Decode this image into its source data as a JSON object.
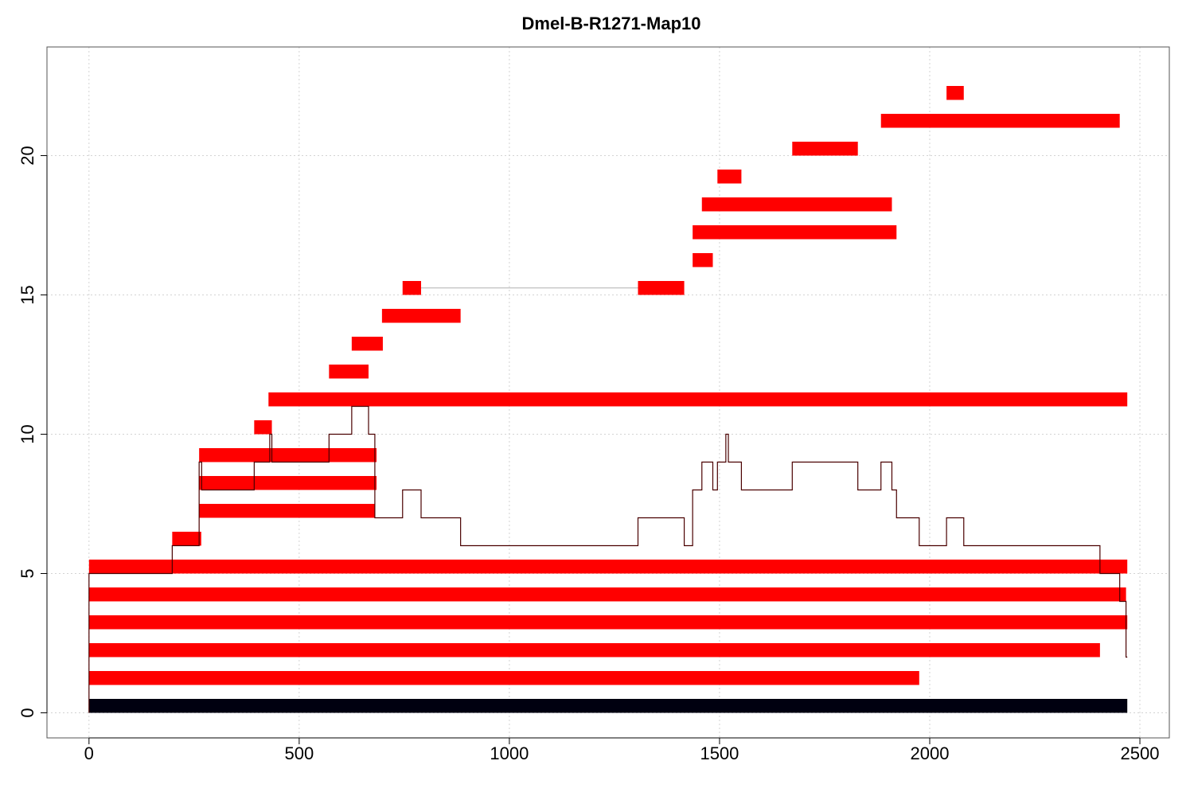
{
  "chart_data": {
    "type": "bar",
    "title": "Dmel-B-R1271-Map10",
    "xlabel": "",
    "ylabel": "",
    "xlim": [
      -100,
      2570
    ],
    "ylim": [
      -0.9,
      23.9
    ],
    "grid": true,
    "x_ticks": [
      0,
      500,
      1000,
      1500,
      2000,
      2500
    ],
    "y_ticks": [
      0,
      5,
      10,
      15,
      20
    ],
    "reference_bar": {
      "y": 0.25,
      "x_start": 0,
      "x_end": 2470,
      "color": "#000010"
    },
    "segments": [
      {
        "y": 1.25,
        "x_start": 0,
        "x_end": 1975
      },
      {
        "y": 2.25,
        "x_start": 0,
        "x_end": 2405
      },
      {
        "y": 3.25,
        "x_start": 0,
        "x_end": 2470
      },
      {
        "y": 4.25,
        "x_start": 0,
        "x_end": 2467
      },
      {
        "y": 5.25,
        "x_start": 0,
        "x_end": 2470
      },
      {
        "y": 6.25,
        "x_start": 198,
        "x_end": 267
      },
      {
        "y": 7.25,
        "x_start": 262,
        "x_end": 680
      },
      {
        "y": 8.25,
        "x_start": 262,
        "x_end": 684
      },
      {
        "y": 9.25,
        "x_start": 262,
        "x_end": 684
      },
      {
        "y": 10.25,
        "x_start": 393,
        "x_end": 435
      },
      {
        "y": 11.25,
        "x_start": 427,
        "x_end": 2470
      },
      {
        "y": 12.25,
        "x_start": 571,
        "x_end": 665
      },
      {
        "y": 13.25,
        "x_start": 625,
        "x_end": 699
      },
      {
        "y": 14.25,
        "x_start": 697,
        "x_end": 884
      },
      {
        "y": 15.25,
        "x_start": 746,
        "x_end": 790
      },
      {
        "y": 15.25,
        "x_start": 1306,
        "x_end": 1416
      },
      {
        "y": 16.25,
        "x_start": 1436,
        "x_end": 1484
      },
      {
        "y": 17.25,
        "x_start": 1436,
        "x_end": 1921
      },
      {
        "y": 18.25,
        "x_start": 1458,
        "x_end": 1910
      },
      {
        "y": 19.25,
        "x_start": 1495,
        "x_end": 1552
      },
      {
        "y": 20.25,
        "x_start": 1673,
        "x_end": 1829
      },
      {
        "y": 21.25,
        "x_start": 1884,
        "x_end": 2452
      },
      {
        "y": 22.25,
        "x_start": 2040,
        "x_end": 2081
      }
    ],
    "connectors": [
      {
        "y": 15.25,
        "x_start": 790,
        "x_end": 1306
      }
    ],
    "coverage": {
      "x": [
        0,
        198,
        262,
        268,
        393,
        430,
        435,
        571,
        625,
        665,
        680,
        684,
        746,
        790,
        884,
        1306,
        1416,
        1436,
        1458,
        1484,
        1495,
        1515,
        1521,
        1552,
        1673,
        1829,
        1884,
        1910,
        1921,
        1975,
        2040,
        2081,
        2405,
        2452,
        2467,
        2470
      ],
      "y": [
        5,
        6,
        9,
        8,
        9,
        10,
        9,
        10,
        11,
        10,
        7,
        7,
        8,
        7,
        6,
        7,
        6,
        8,
        9,
        8,
        9,
        10,
        9,
        8,
        9,
        8,
        9,
        8,
        7,
        6,
        7,
        6,
        5,
        4,
        2,
        2
      ]
    },
    "colors": {
      "segment": "#ff0000",
      "coverage": "#4a0000",
      "connector": "#b0b0b0",
      "grid": "#d3d3d3",
      "axis": "#000000"
    }
  }
}
